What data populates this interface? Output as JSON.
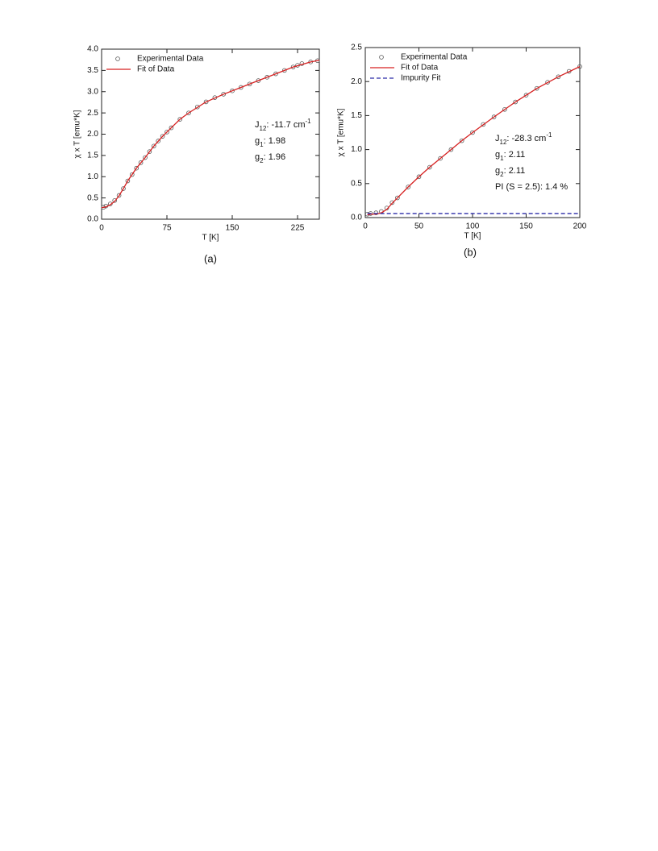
{
  "chart_data": [
    {
      "type": "line",
      "caption": "(a)",
      "xlabel": "T [K]",
      "ylabel": "χ x T [emu*K]",
      "xlim": [
        0,
        250
      ],
      "ylim": [
        0,
        4
      ],
      "xticks": [
        0,
        75,
        150,
        225
      ],
      "yticks": [
        {
          "value": 0,
          "label": "0.0"
        },
        0.5,
        {
          "value": 1,
          "label": "1.0"
        },
        1.5,
        {
          "value": 2,
          "label": "2.0"
        },
        2.5,
        {
          "value": 3,
          "label": "3.0"
        },
        3.5,
        {
          "value": 4,
          "label": "4.0"
        }
      ],
      "legend": "upper left",
      "series": [
        {
          "name": "Experimental Data",
          "color": "#555555",
          "marker": "circle",
          "x": [
            2,
            5,
            10,
            15,
            20,
            25,
            30,
            35,
            40,
            45,
            50,
            55,
            60,
            65,
            70,
            75,
            80,
            90,
            100,
            110,
            120,
            130,
            140,
            150,
            160,
            170,
            180,
            190,
            200,
            210,
            220,
            225,
            230,
            240,
            248
          ],
          "values": [
            0.28,
            0.31,
            0.36,
            0.44,
            0.56,
            0.72,
            0.9,
            1.05,
            1.2,
            1.33,
            1.45,
            1.59,
            1.72,
            1.84,
            1.95,
            2.05,
            2.15,
            2.35,
            2.5,
            2.64,
            2.76,
            2.86,
            2.94,
            3.02,
            3.1,
            3.18,
            3.26,
            3.34,
            3.42,
            3.5,
            3.58,
            3.62,
            3.66,
            3.7,
            3.73
          ]
        },
        {
          "name": "Fit of Data",
          "color": "#d62020",
          "line_style": "solid",
          "x": [
            0,
            5,
            10,
            15,
            20,
            25,
            30,
            40,
            50,
            60,
            70,
            80,
            90,
            100,
            120,
            140,
            160,
            180,
            200,
            220,
            240,
            250
          ],
          "values": [
            0.27,
            0.29,
            0.34,
            0.42,
            0.55,
            0.72,
            0.9,
            1.2,
            1.45,
            1.72,
            1.95,
            2.15,
            2.35,
            2.5,
            2.76,
            2.94,
            3.1,
            3.26,
            3.42,
            3.58,
            3.7,
            3.74
          ]
        }
      ],
      "annotations": [
        [
          {
            "text": "J"
          },
          {
            "text": "12",
            "script": "sub"
          },
          {
            "text": ": -11.7 cm"
          },
          {
            "text": "-1",
            "script": "super"
          }
        ],
        [
          {
            "text": "g"
          },
          {
            "text": "1",
            "script": "sub"
          },
          {
            "text": ": 1.98"
          }
        ],
        [
          {
            "text": "g"
          },
          {
            "text": "2",
            "script": "sub"
          },
          {
            "text": ": 1.96"
          }
        ]
      ]
    },
    {
      "type": "line",
      "caption": "(b)",
      "xlabel": "T [K]",
      "ylabel": "χ x T [emu*K]",
      "xlim": [
        0,
        200
      ],
      "ylim": [
        0,
        2.5
      ],
      "xticks": [
        0,
        50,
        100,
        150,
        200
      ],
      "yticks": [
        {
          "value": 0,
          "label": "0.0"
        },
        0.5,
        {
          "value": 1,
          "label": "1.0"
        },
        1.5,
        {
          "value": 2,
          "label": "2.0"
        },
        2.5
      ],
      "legend": "upper left",
      "series": [
        {
          "name": "Experimental Data",
          "color": "#555555",
          "marker": "circle",
          "x": [
            2,
            5,
            10,
            15,
            20,
            25,
            30,
            40,
            50,
            60,
            70,
            80,
            90,
            100,
            110,
            120,
            130,
            140,
            150,
            160,
            170,
            180,
            190,
            200
          ],
          "values": [
            0.05,
            0.06,
            0.07,
            0.09,
            0.14,
            0.22,
            0.29,
            0.45,
            0.6,
            0.74,
            0.87,
            1.0,
            1.13,
            1.25,
            1.37,
            1.48,
            1.59,
            1.7,
            1.8,
            1.9,
            1.99,
            2.07,
            2.15,
            2.22
          ]
        },
        {
          "name": "Fit of Data",
          "color": "#d62020",
          "line_style": "solid",
          "x": [
            2,
            5,
            10,
            15,
            20,
            25,
            30,
            40,
            50,
            60,
            70,
            80,
            90,
            100,
            120,
            140,
            160,
            180,
            200
          ],
          "values": [
            0.04,
            0.05,
            0.05,
            0.07,
            0.12,
            0.21,
            0.29,
            0.45,
            0.6,
            0.74,
            0.87,
            1.0,
            1.13,
            1.25,
            1.48,
            1.7,
            1.9,
            2.07,
            2.22
          ]
        },
        {
          "name": "Impurity Fit",
          "color": "#2a2aa8",
          "line_style": "dashed",
          "x": [
            2,
            200
          ],
          "values": [
            0.06,
            0.06
          ]
        }
      ],
      "annotations": [
        [
          {
            "text": "J"
          },
          {
            "text": "12",
            "script": "sub"
          },
          {
            "text": ": -28.3 cm"
          },
          {
            "text": "-1",
            "script": "super"
          }
        ],
        [
          {
            "text": "g"
          },
          {
            "text": "1",
            "script": "sub"
          },
          {
            "text": ": 2.11"
          }
        ],
        [
          {
            "text": "g"
          },
          {
            "text": "2",
            "script": "sub"
          },
          {
            "text": ": 2.11"
          }
        ],
        [
          {
            "text": "PI (S = 2.5): 1.4 %"
          }
        ]
      ]
    }
  ]
}
